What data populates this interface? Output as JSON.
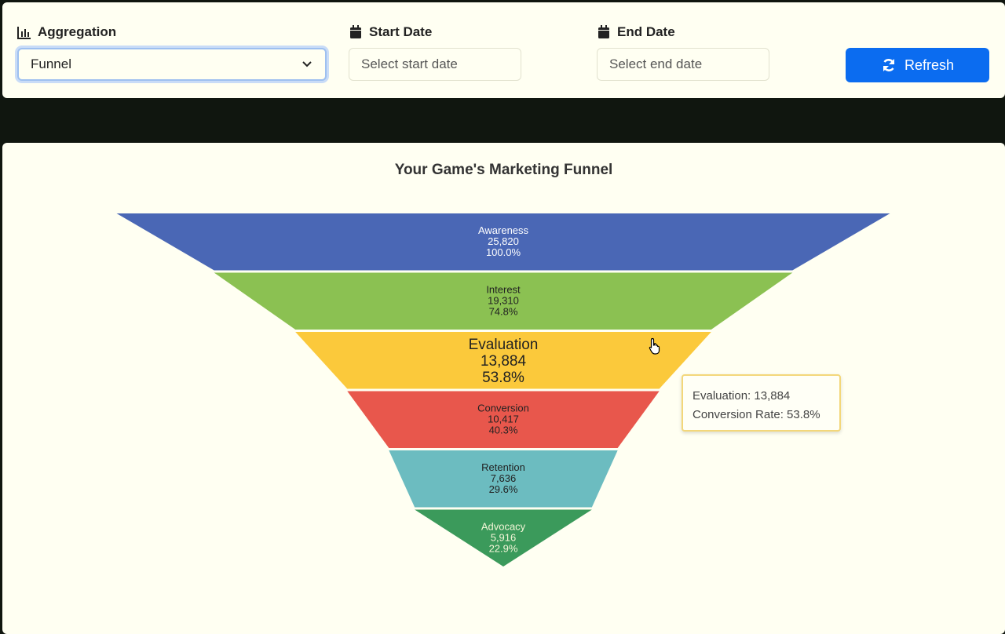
{
  "controls": {
    "aggregation_label": "Aggregation",
    "aggregation_value": "Funnel",
    "start_date_label": "Start Date",
    "start_date_placeholder": "Select start date",
    "end_date_label": "End Date",
    "end_date_placeholder": "Select end date",
    "refresh_label": "Refresh",
    "accent": "#0b6cf0"
  },
  "chart_data": {
    "type": "funnel",
    "title": "Your Game's Marketing Funnel",
    "categories": [
      "Awareness",
      "Interest",
      "Evaluation",
      "Conversion",
      "Retention",
      "Advocacy"
    ],
    "values": [
      25820,
      19310,
      13884,
      10417,
      7636,
      5916
    ],
    "value_labels": [
      "25,820",
      "19,310",
      "13,884",
      "10,417",
      "7,636",
      "5,916"
    ],
    "percent_labels": [
      "100.0%",
      "74.8%",
      "53.8%",
      "40.3%",
      "29.6%",
      "22.9%"
    ],
    "colors": [
      "#4a67b5",
      "#8bc152",
      "#fbc93b",
      "#e8574c",
      "#6cbcc0",
      "#3b9a5b"
    ],
    "label_colors": [
      "#ffffff",
      "#222222",
      "#222222",
      "#222222",
      "#222222",
      "#f4f6d8"
    ],
    "highlighted": "Evaluation",
    "tooltip": {
      "line1": "Evaluation: 13,884",
      "line2": "Conversion Rate: 53.8%"
    }
  }
}
